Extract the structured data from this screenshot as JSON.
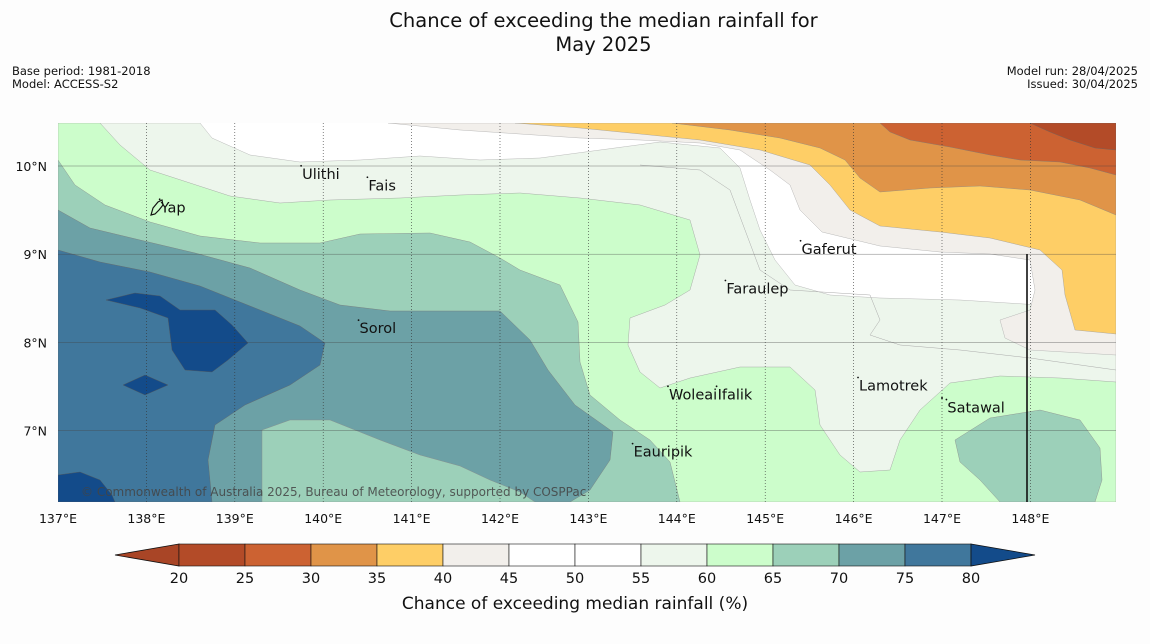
{
  "title_line1": "Chance of exceeding the median rainfall for",
  "title_line2": "May 2025",
  "meta_left": [
    "Base period: 1981-2018",
    "Model: ACCESS-S2"
  ],
  "meta_right": [
    "Model run: 28/04/2025",
    "Issued: 30/04/2025"
  ],
  "copyright": "© Commonwealth of Australia 2025, Bureau of Meteorology, supported by COSPPac",
  "colorbar_title": "Chance of exceeding median rainfall (%)",
  "map": {
    "lon_range": [
      137,
      149
    ],
    "lat_range": [
      6.2,
      10.5
    ],
    "lon_ticks": [
      "137°E",
      "138°E",
      "139°E",
      "140°E",
      "141°E",
      "142°E",
      "143°E",
      "144°E",
      "145°E",
      "146°E",
      "147°E",
      "148°E"
    ],
    "lat_ticks": [
      "10°N",
      "9°N",
      "8°N",
      "7°N"
    ],
    "places": [
      {
        "name": "Ulithi",
        "lon": 139.75,
        "lat": 9.9
      },
      {
        "name": "Fais",
        "lon": 140.5,
        "lat": 9.77
      },
      {
        "name": "Yap",
        "lon": 138.15,
        "lat": 9.52
      },
      {
        "name": "Gaferut",
        "lon": 145.4,
        "lat": 9.05
      },
      {
        "name": "Faraulep",
        "lon": 144.55,
        "lat": 8.6
      },
      {
        "name": "Sorol",
        "lon": 140.4,
        "lat": 8.15
      },
      {
        "name": "Lamotrek",
        "lon": 146.05,
        "lat": 7.5
      },
      {
        "name": "Woleai",
        "lon": 143.9,
        "lat": 7.4
      },
      {
        "name": "Ifalik",
        "lon": 144.45,
        "lat": 7.4
      },
      {
        "name": "Satawal",
        "lon": 147.05,
        "lat": 7.25
      },
      {
        "name": "Eauripik",
        "lon": 143.5,
        "lat": 6.75
      }
    ]
  },
  "colorbar": {
    "ticks": [
      "20",
      "25",
      "30",
      "35",
      "40",
      "45",
      "50",
      "55",
      "60",
      "65",
      "70",
      "75",
      "80"
    ],
    "colors": {
      "below20": "#a94526",
      "c20_25": "#b34b28",
      "c25_30": "#cc6232",
      "c30_35": "#e09448",
      "c35_40": "#fece66",
      "c40_45": "#f2efeb",
      "c45_50": "#ffffff",
      "c50_55": "#ffffff",
      "c55_60": "#edf6ec",
      "c60_65": "#ccfdcb",
      "c65_70": "#9cd0b9",
      "c70_75": "#6ca1a6",
      "c75_80": "#40779c",
      "above80": "#134b8a"
    }
  }
}
